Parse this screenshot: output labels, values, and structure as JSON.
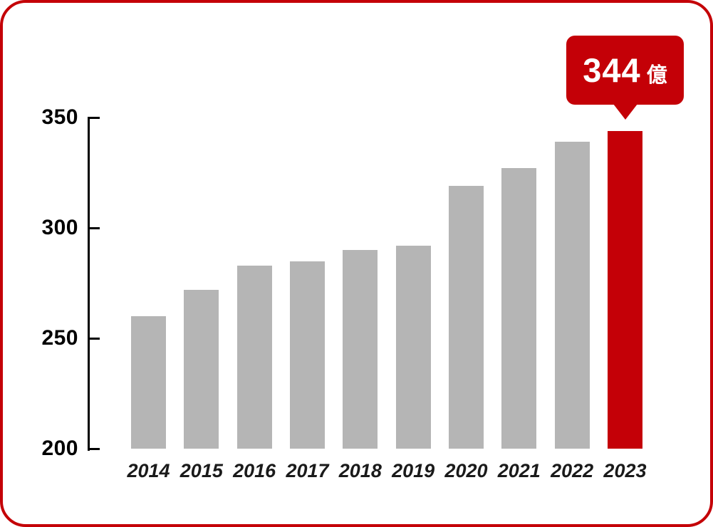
{
  "card": {
    "background": "#ffffff",
    "border_color": "#c40007"
  },
  "chart_data": {
    "type": "bar",
    "title": "",
    "categories": [
      "2014",
      "2015",
      "2016",
      "2017",
      "2018",
      "2019",
      "2020",
      "2021",
      "2022",
      "2023"
    ],
    "values": [
      260,
      272,
      283,
      285,
      290,
      292,
      319,
      327,
      339,
      344
    ],
    "ylim": [
      200,
      350
    ],
    "yticks": [
      350,
      300,
      250,
      200
    ],
    "ytick_step": 50,
    "grid": false,
    "legend": "none",
    "xlabel": "",
    "ylabel": "",
    "highlight_index": 9,
    "colors": {
      "bar": "#b5b5b5",
      "highlight": "#c40007",
      "axis": "#000000",
      "x_label": "#1a1a1a",
      "y_label": "#000000"
    }
  },
  "callout": {
    "value": "344",
    "unit": "億"
  }
}
